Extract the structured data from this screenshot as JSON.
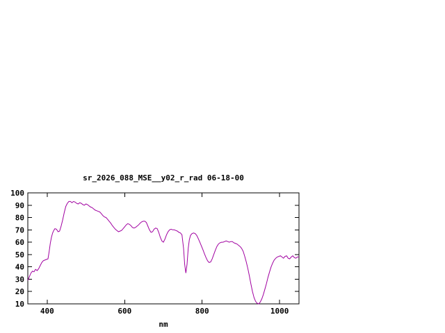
{
  "chart_data": {
    "type": "line",
    "title": "sr_2026_088_MSE__y02_r_rad 06-18-00",
    "xlabel": "nm",
    "ylabel": "",
    "xlim": [
      350,
      1050
    ],
    "ylim": [
      10,
      100
    ],
    "xticks": [
      400,
      600,
      800,
      1000
    ],
    "yticks": [
      10,
      20,
      30,
      40,
      50,
      60,
      70,
      80,
      90,
      100
    ],
    "grid": false,
    "legend": "none",
    "axis_color": "#000000",
    "background_color": "#ffffff",
    "series": [
      {
        "name": "sr_2026_088_MSE__y02_r_rad 06-18-00",
        "color": "#a000a0",
        "points": [
          [
            350,
            29
          ],
          [
            354,
            32
          ],
          [
            358,
            35
          ],
          [
            362,
            36.5
          ],
          [
            366,
            36
          ],
          [
            370,
            38
          ],
          [
            374,
            37
          ],
          [
            378,
            38.5
          ],
          [
            382,
            41
          ],
          [
            386,
            43.5
          ],
          [
            390,
            45
          ],
          [
            394,
            45.5
          ],
          [
            398,
            46
          ],
          [
            402,
            46.5
          ],
          [
            405,
            52
          ],
          [
            408,
            59
          ],
          [
            411,
            64
          ],
          [
            414,
            67.5
          ],
          [
            417,
            69.5
          ],
          [
            420,
            71
          ],
          [
            424,
            70.5
          ],
          [
            428,
            68.5
          ],
          [
            432,
            69
          ],
          [
            436,
            73
          ],
          [
            440,
            78
          ],
          [
            444,
            84
          ],
          [
            448,
            89
          ],
          [
            452,
            91.5
          ],
          [
            456,
            93
          ],
          [
            460,
            93
          ],
          [
            464,
            92
          ],
          [
            468,
            93
          ],
          [
            472,
            92.5
          ],
          [
            476,
            91.5
          ],
          [
            480,
            91
          ],
          [
            484,
            92
          ],
          [
            488,
            91.5
          ],
          [
            492,
            90.5
          ],
          [
            496,
            90
          ],
          [
            500,
            91
          ],
          [
            504,
            90.5
          ],
          [
            508,
            89.5
          ],
          [
            512,
            88.5
          ],
          [
            516,
            88
          ],
          [
            520,
            87
          ],
          [
            524,
            86
          ],
          [
            528,
            85.5
          ],
          [
            532,
            85
          ],
          [
            536,
            84.5
          ],
          [
            540,
            83
          ],
          [
            544,
            81.5
          ],
          [
            548,
            80.5
          ],
          [
            552,
            80
          ],
          [
            556,
            78.5
          ],
          [
            560,
            77
          ],
          [
            564,
            75.5
          ],
          [
            568,
            73.5
          ],
          [
            572,
            72
          ],
          [
            576,
            70.5
          ],
          [
            580,
            69.5
          ],
          [
            584,
            68.5
          ],
          [
            588,
            69
          ],
          [
            592,
            69.5
          ],
          [
            596,
            71
          ],
          [
            600,
            72.5
          ],
          [
            604,
            74
          ],
          [
            608,
            75
          ],
          [
            612,
            74.5
          ],
          [
            616,
            73.5
          ],
          [
            620,
            72
          ],
          [
            624,
            71.5
          ],
          [
            628,
            72
          ],
          [
            632,
            73
          ],
          [
            636,
            74
          ],
          [
            640,
            75.5
          ],
          [
            644,
            76.5
          ],
          [
            648,
            77
          ],
          [
            652,
            77
          ],
          [
            656,
            76
          ],
          [
            660,
            73
          ],
          [
            664,
            70
          ],
          [
            668,
            68
          ],
          [
            672,
            68.5
          ],
          [
            676,
            70.5
          ],
          [
            680,
            71.5
          ],
          [
            684,
            71
          ],
          [
            688,
            68
          ],
          [
            692,
            64
          ],
          [
            696,
            61
          ],
          [
            700,
            60
          ],
          [
            704,
            62.5
          ],
          [
            708,
            66
          ],
          [
            712,
            68.5
          ],
          [
            716,
            70
          ],
          [
            720,
            70.5
          ],
          [
            724,
            70
          ],
          [
            728,
            70
          ],
          [
            732,
            69.5
          ],
          [
            736,
            69
          ],
          [
            740,
            68
          ],
          [
            744,
            67.5
          ],
          [
            748,
            66
          ],
          [
            752,
            55
          ],
          [
            755,
            42
          ],
          [
            758,
            35
          ],
          [
            761,
            42
          ],
          [
            764,
            55
          ],
          [
            767,
            62
          ],
          [
            770,
            65.5
          ],
          [
            774,
            67
          ],
          [
            778,
            67.5
          ],
          [
            782,
            67
          ],
          [
            786,
            65.5
          ],
          [
            790,
            63
          ],
          [
            794,
            60
          ],
          [
            798,
            57
          ],
          [
            802,
            54
          ],
          [
            806,
            50.5
          ],
          [
            810,
            47.5
          ],
          [
            814,
            45
          ],
          [
            818,
            43.5
          ],
          [
            822,
            44
          ],
          [
            826,
            46.5
          ],
          [
            830,
            50
          ],
          [
            834,
            53.5
          ],
          [
            838,
            56.5
          ],
          [
            842,
            58.5
          ],
          [
            846,
            59.5
          ],
          [
            850,
            60
          ],
          [
            854,
            60
          ],
          [
            858,
            60.5
          ],
          [
            862,
            61
          ],
          [
            866,
            60.5
          ],
          [
            870,
            60
          ],
          [
            874,
            60.5
          ],
          [
            878,
            60.5
          ],
          [
            882,
            59.5
          ],
          [
            886,
            59
          ],
          [
            890,
            58.5
          ],
          [
            894,
            57.5
          ],
          [
            898,
            56.5
          ],
          [
            902,
            55
          ],
          [
            906,
            52.5
          ],
          [
            910,
            48.5
          ],
          [
            914,
            44
          ],
          [
            918,
            38.5
          ],
          [
            922,
            32.5
          ],
          [
            926,
            26
          ],
          [
            930,
            20
          ],
          [
            934,
            15
          ],
          [
            938,
            12
          ],
          [
            942,
            10.5
          ],
          [
            946,
            10
          ],
          [
            950,
            11.5
          ],
          [
            954,
            14
          ],
          [
            958,
            17.5
          ],
          [
            962,
            22
          ],
          [
            966,
            26.5
          ],
          [
            970,
            31.5
          ],
          [
            974,
            36
          ],
          [
            978,
            40
          ],
          [
            982,
            43
          ],
          [
            986,
            45.5
          ],
          [
            990,
            47
          ],
          [
            994,
            48
          ],
          [
            998,
            48.5
          ],
          [
            1002,
            49
          ],
          [
            1006,
            48
          ],
          [
            1010,
            47
          ],
          [
            1014,
            48.5
          ],
          [
            1018,
            49
          ],
          [
            1022,
            47
          ],
          [
            1026,
            46.5
          ],
          [
            1030,
            48
          ],
          [
            1034,
            49
          ],
          [
            1038,
            47.5
          ],
          [
            1042,
            47
          ],
          [
            1046,
            48
          ],
          [
            1050,
            48
          ]
        ]
      }
    ]
  }
}
